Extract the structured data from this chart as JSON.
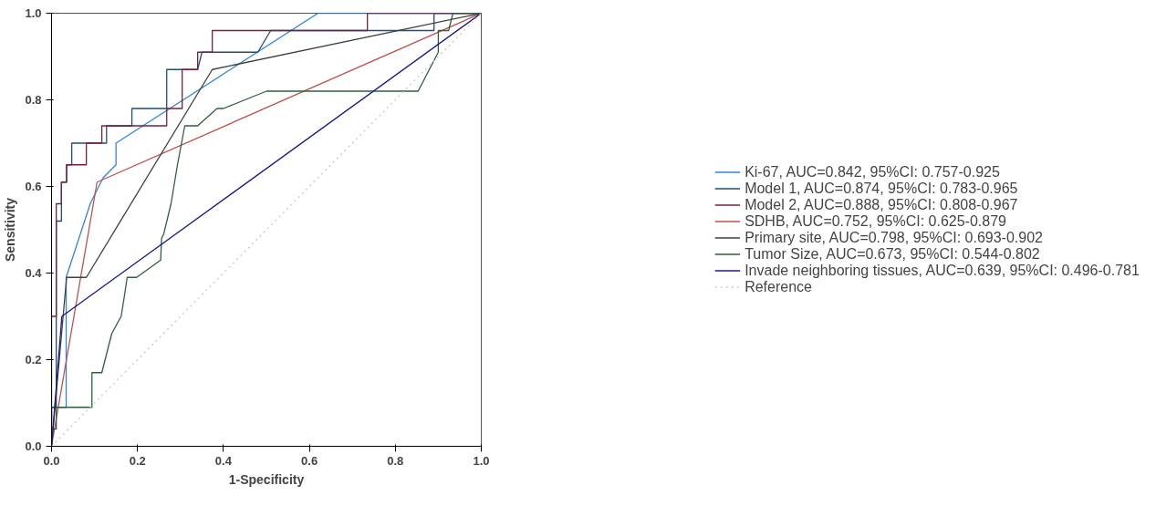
{
  "chart_data": {
    "type": "line",
    "xlabel": "1-Specificity",
    "ylabel": "Sensitivity",
    "xlim": [
      0,
      1
    ],
    "ylim": [
      0,
      1
    ],
    "xticks": [
      {
        "value": 0,
        "label": "0.0"
      },
      0.2,
      0.4,
      0.6,
      0.8,
      {
        "value": 1,
        "label": "1.0"
      }
    ],
    "yticks": [
      {
        "value": 0,
        "label": "0.0"
      },
      0.2,
      0.4,
      0.6,
      0.8,
      {
        "value": 1,
        "label": "1.0"
      }
    ],
    "grid": false,
    "legend": "right",
    "marker": "none",
    "line_style": "solid",
    "series": [
      {
        "name": "Ki-67, AUC=0.842, 95%CI: 0.757-0.925",
        "color": "#2f86d6",
        "x": [
          0,
          0,
          0.034,
          0.034,
          0.09,
          0.12,
          0.15,
          0.15,
          0.62,
          1
        ],
        "values": [
          0,
          0.09,
          0.09,
          0.39,
          0.56,
          0.62,
          0.65,
          0.7,
          1,
          1
        ]
      },
      {
        "name": "Model 1, AUC=0.874, 95%CI: 0.783-0.965",
        "color": "#1f4e79",
        "x": [
          0,
          0,
          0.011,
          0.011,
          0.023,
          0.023,
          0.035,
          0.035,
          0.047,
          0.047,
          0.128,
          0.128,
          0.187,
          0.187,
          0.268,
          0.268,
          0.34,
          0.35,
          0.48,
          0.51,
          0.89,
          0.89,
          1
        ],
        "values": [
          0,
          0.09,
          0.09,
          0.52,
          0.52,
          0.61,
          0.61,
          0.65,
          0.65,
          0.7,
          0.7,
          0.74,
          0.74,
          0.78,
          0.78,
          0.87,
          0.87,
          0.91,
          0.91,
          0.96,
          0.96,
          1,
          1
        ]
      },
      {
        "name": "Model 2, AUC=0.888, 95%CI: 0.808-0.967",
        "color": "#7b1f3a",
        "x": [
          0,
          0,
          0.011,
          0.011,
          0.023,
          0.023,
          0.035,
          0.035,
          0.081,
          0.081,
          0.117,
          0.117,
          0.268,
          0.268,
          0.304,
          0.304,
          0.34,
          0.34,
          0.374,
          0.374,
          0.735,
          0.735,
          1
        ],
        "values": [
          0,
          0.3,
          0.3,
          0.56,
          0.56,
          0.61,
          0.61,
          0.65,
          0.65,
          0.7,
          0.7,
          0.74,
          0.74,
          0.78,
          0.78,
          0.87,
          0.87,
          0.91,
          0.91,
          0.96,
          0.96,
          1,
          1
        ]
      },
      {
        "name": "SDHB, AUC=0.752, 95%CI: 0.625-0.879",
        "color": "#c0504d",
        "x": [
          0,
          0.106,
          1
        ],
        "values": [
          0,
          0.61,
          1
        ]
      },
      {
        "name": "Primary site, AUC=0.798, 95%CI: 0.693-0.902",
        "color": "#404040",
        "x": [
          0,
          0.035,
          0.081,
          0.374,
          1
        ],
        "values": [
          0,
          0.39,
          0.39,
          0.87,
          1
        ]
      },
      {
        "name": "Tumor Size, AUC=0.673, 95%CI: 0.544-0.802",
        "color": "#2f5f3f",
        "x": [
          0,
          0,
          0.011,
          0.011,
          0.094,
          0.094,
          0.117,
          0.14,
          0.162,
          0.17,
          0.176,
          0.198,
          0.254,
          0.256,
          0.261,
          0.278,
          0.293,
          0.31,
          0.34,
          0.385,
          0.4,
          0.5,
          0.853,
          0.9,
          0.9,
          0.924,
          0.934,
          1
        ],
        "values": [
          0,
          0.04,
          0.04,
          0.09,
          0.09,
          0.17,
          0.17,
          0.26,
          0.3,
          0.35,
          0.39,
          0.39,
          0.43,
          0.48,
          0.49,
          0.56,
          0.65,
          0.74,
          0.74,
          0.78,
          0.78,
          0.82,
          0.82,
          0.91,
          0.96,
          0.96,
          1,
          1
        ]
      },
      {
        "name": "Invade neighboring tissues, AUC=0.639, 95%CI: 0.496-0.781",
        "color": "#1a1a8c",
        "x": [
          0,
          0.024,
          1
        ],
        "values": [
          0,
          0.3,
          1
        ]
      },
      {
        "name": "Reference",
        "color": "#c8c8c8",
        "line_style": "dotted",
        "x": [
          0,
          1
        ],
        "values": [
          0,
          1
        ]
      }
    ]
  }
}
